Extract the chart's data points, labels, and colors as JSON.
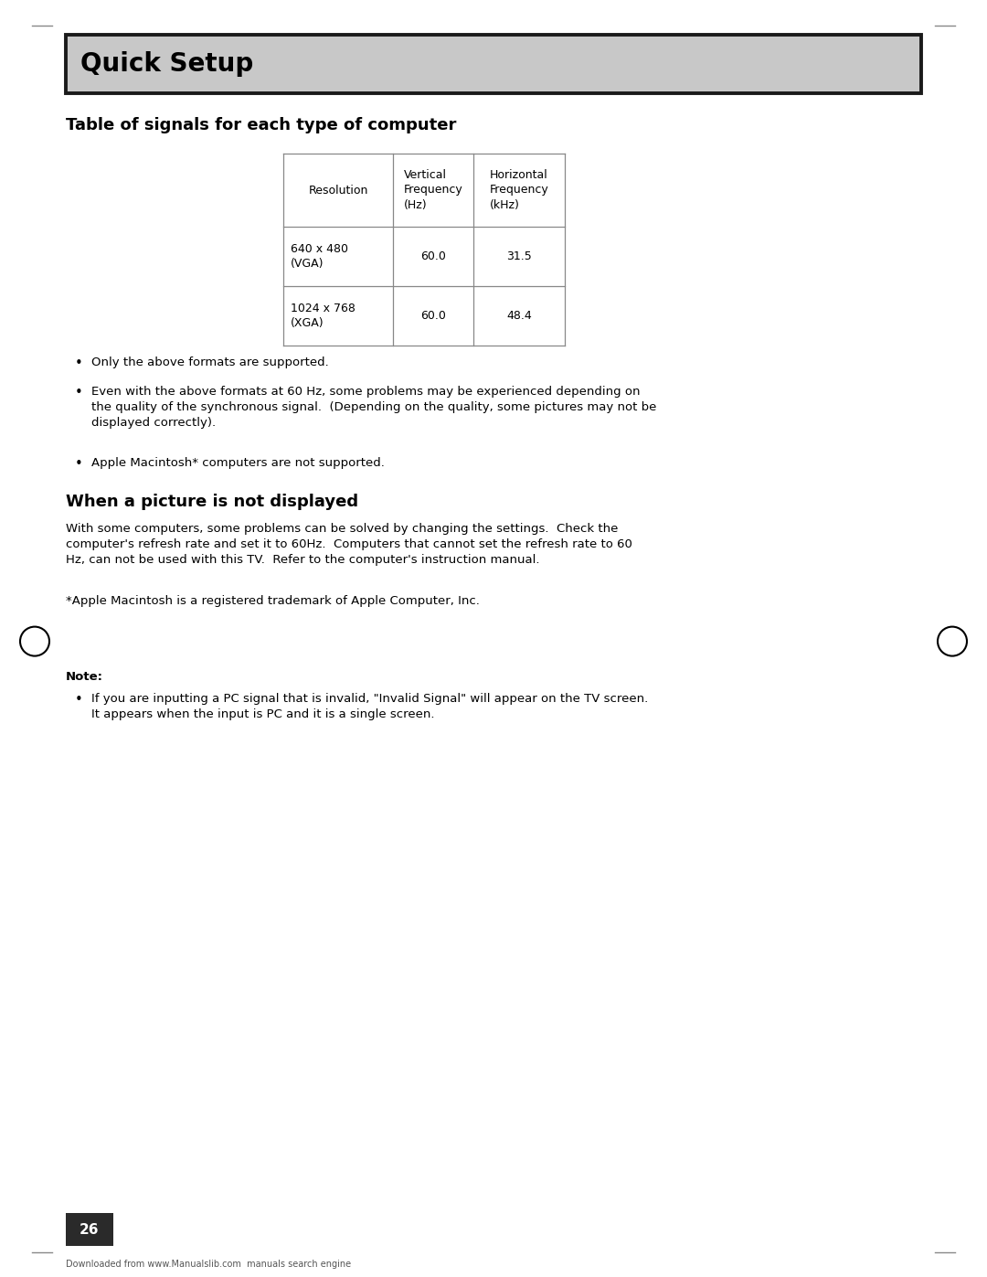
{
  "page_width": 10.8,
  "page_height": 13.97,
  "bg_color": "#ffffff",
  "header_bg": "#c8c8c8",
  "header_border": "#1a1a1a",
  "header_text": "Quick Setup",
  "header_text_color": "#000000",
  "header_font_size": 20,
  "section1_title": "Table of signals for each type of computer",
  "section1_title_size": 13,
  "table_headers": [
    "Resolution",
    "Vertical\nFrequency\n(Hz)",
    "Horizontal\nFrequency\n(kHz)"
  ],
  "table_rows": [
    [
      "640 x 480\n(VGA)",
      "60.0",
      "31.5"
    ],
    [
      "1024 x 768\n(XGA)",
      "60.0",
      "48.4"
    ]
  ],
  "bullet_points": [
    "Only the above formats are supported.",
    "Even with the above formats at 60 Hz, some problems may be experienced depending on\nthe quality of the synchronous signal.  (Depending on the quality, some pictures may not be\ndisplayed correctly).",
    "Apple Macintosh* computers are not supported."
  ],
  "section2_title": "When a picture is not displayed",
  "section2_title_size": 13,
  "section2_body": "With some computers, some problems can be solved by changing the settings.  Check the\ncomputer's refresh rate and set it to 60Hz.  Computers that cannot set the refresh rate to 60\nHz, can not be used with this TV.  Refer to the computer's instruction manual.",
  "trademark_text": "*Apple Macintosh is a registered trademark of Apple Computer, Inc.",
  "note_label": "Note:",
  "note_bullet": "If you are inputting a PC signal that is invalid, \"Invalid Signal\" will appear on the TV screen.\nIt appears when the input is PC and it is a single screen.",
  "page_number": "26",
  "footer_text": "Downloaded from www.Manualslib.com  manuals search engine",
  "body_font_size": 9.5,
  "small_font_size": 8,
  "table_font_size": 9,
  "text_color": "#000000",
  "table_line_color": "#888888",
  "circle_color": "#000000"
}
